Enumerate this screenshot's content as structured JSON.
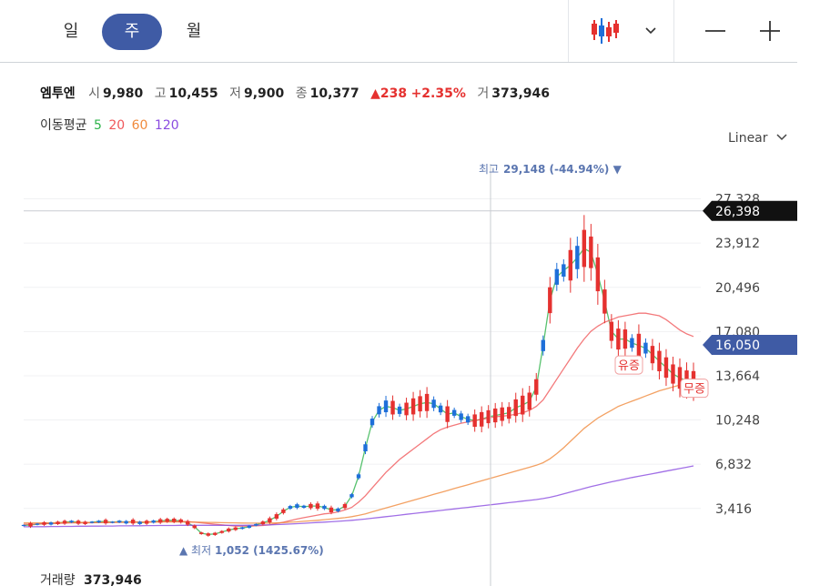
{
  "tabs": [
    {
      "label": "일",
      "active": false
    },
    {
      "label": "주",
      "active": true
    },
    {
      "label": "월",
      "active": false
    }
  ],
  "toolbar": {
    "chart_type_icon": "candlestick-icon",
    "dropdown_icon": "chevron-down-icon",
    "zoom_out_icon": "minus-icon",
    "zoom_in_icon": "plus-icon"
  },
  "stock": {
    "name": "엠투엔",
    "open_label": "시",
    "open": "9,980",
    "high_label": "고",
    "high": "10,455",
    "low_label": "저",
    "low": "9,900",
    "close_label": "종",
    "close": "10,377",
    "change": "▲238",
    "change_pct": "+2.35%",
    "volume_label": "거",
    "volume": "373,946"
  },
  "ma": {
    "label": "이동평균",
    "periods": [
      {
        "label": "5",
        "color": "#2db34a"
      },
      {
        "label": "20",
        "color": "#f0575a"
      },
      {
        "label": "60",
        "color": "#f08a3c"
      },
      {
        "label": "120",
        "color": "#8a4be0"
      }
    ]
  },
  "scale_label": "Linear",
  "volume_footer": {
    "label": "거래량",
    "value": "373,946"
  },
  "colors": {
    "up": "#e5312f",
    "down": "#1e6fd9",
    "accent": "#3f5ba5",
    "crosshair_tag": "#111111",
    "price_tag": "#3f5ba5"
  },
  "chart_data": {
    "type": "candlestick",
    "ylim": [
      0,
      30000
    ],
    "yticks": [
      {
        "value": 3416,
        "label": "3,416"
      },
      {
        "value": 6832,
        "label": "6,832"
      },
      {
        "value": 10248,
        "label": "10,248"
      },
      {
        "value": 13664,
        "label": "13,664"
      },
      {
        "value": 17080,
        "label": "17,080"
      },
      {
        "value": 20496,
        "label": "20,496"
      },
      {
        "value": 23912,
        "label": "23,912"
      },
      {
        "value": 27328,
        "label": "27,328"
      }
    ],
    "crosshair_price": {
      "value": 26398,
      "label": "26,398"
    },
    "current_price": {
      "value": 16050,
      "label": "16,050"
    },
    "high_marker": {
      "label": "최고",
      "value_text": "29,148 (-44.94%)",
      "price": 29148
    },
    "low_marker": {
      "label": "최저",
      "value_text": "1,052 (1425.67%)",
      "price": 1052
    },
    "event_badges": [
      {
        "label": "유증",
        "price": 14500
      },
      {
        "label": "무증",
        "price": 12700
      }
    ],
    "series": [
      {
        "name": "5",
        "color": "#2db34a",
        "values": [
          2100,
          2150,
          2200,
          2250,
          2250,
          2300,
          2350,
          2400,
          2350,
          2300,
          2350,
          2400,
          2400,
          2350,
          2400,
          2350,
          2400,
          2300,
          2350,
          2400,
          2450,
          2500,
          2500,
          2450,
          2300,
          2000,
          1500,
          1400,
          1450,
          1600,
          1750,
          1850,
          1900,
          2000,
          2150,
          2300,
          2500,
          2800,
          3200,
          3500,
          3600,
          3550,
          3600,
          3600,
          3500,
          3300,
          3300,
          3600,
          4400,
          5900,
          8100,
          10100,
          11000,
          11300,
          11200,
          11000,
          11100,
          11300,
          11500,
          11600,
          11500,
          11100,
          10700,
          10800,
          10500,
          10300,
          10200,
          10300,
          10500,
          10600,
          10700,
          10800,
          11200,
          11400,
          11700,
          12800,
          16000,
          19500,
          21300,
          21800,
          22200,
          22800,
          23500,
          23200,
          21500,
          19400,
          17100,
          16500,
          16500,
          16200,
          16000,
          15800,
          15300,
          14800,
          14300,
          13800,
          13500,
          13300,
          13200
        ]
      },
      {
        "name": "20",
        "color": "#f0575a",
        "values": [
          2200,
          2200,
          2220,
          2240,
          2250,
          2260,
          2280,
          2300,
          2300,
          2300,
          2310,
          2320,
          2330,
          2330,
          2340,
          2350,
          2360,
          2360,
          2370,
          2380,
          2390,
          2400,
          2400,
          2410,
          2400,
          2350,
          2300,
          2250,
          2200,
          2150,
          2100,
          2050,
          2050,
          2050,
          2080,
          2100,
          2150,
          2250,
          2350,
          2480,
          2600,
          2700,
          2800,
          2900,
          3000,
          3050,
          3150,
          3300,
          3500,
          3900,
          4400,
          5000,
          5600,
          6200,
          6700,
          7200,
          7600,
          8000,
          8400,
          8800,
          9200,
          9500,
          9700,
          9850,
          10000,
          10100,
          10200,
          10300,
          10400,
          10500,
          10550,
          10600,
          10700,
          10800,
          11000,
          11300,
          11800,
          12600,
          13400,
          14200,
          15000,
          15800,
          16500,
          17100,
          17500,
          17800,
          18000,
          18200,
          18300,
          18400,
          18500,
          18500,
          18400,
          18300,
          18000,
          17600,
          17200,
          16900,
          16700
        ]
      },
      {
        "name": "60",
        "color": "#f08a3c",
        "values": [
          2300,
          2300,
          2300,
          2310,
          2310,
          2320,
          2320,
          2330,
          2330,
          2330,
          2340,
          2340,
          2340,
          2350,
          2350,
          2350,
          2360,
          2360,
          2360,
          2360,
          2370,
          2370,
          2370,
          2370,
          2370,
          2360,
          2350,
          2340,
          2330,
          2320,
          2310,
          2300,
          2290,
          2280,
          2280,
          2280,
          2290,
          2300,
          2320,
          2350,
          2380,
          2420,
          2460,
          2500,
          2550,
          2600,
          2650,
          2700,
          2780,
          2880,
          3000,
          3150,
          3300,
          3450,
          3600,
          3750,
          3900,
          4050,
          4200,
          4350,
          4500,
          4650,
          4800,
          4950,
          5100,
          5250,
          5400,
          5550,
          5700,
          5850,
          6000,
          6150,
          6300,
          6450,
          6600,
          6750,
          6950,
          7250,
          7650,
          8100,
          8600,
          9100,
          9600,
          10000,
          10400,
          10700,
          11000,
          11300,
          11500,
          11700,
          11900,
          12100,
          12300,
          12500,
          12650,
          12800,
          12950,
          13100,
          13200
        ]
      },
      {
        "name": "120",
        "color": "#8a4be0",
        "values": [
          2000,
          2000,
          2010,
          2010,
          2020,
          2020,
          2030,
          2030,
          2040,
          2040,
          2050,
          2050,
          2060,
          2060,
          2070,
          2070,
          2080,
          2080,
          2090,
          2090,
          2100,
          2100,
          2100,
          2110,
          2110,
          2110,
          2110,
          2110,
          2110,
          2110,
          2110,
          2110,
          2110,
          2120,
          2130,
          2140,
          2150,
          2170,
          2190,
          2210,
          2240,
          2270,
          2300,
          2330,
          2360,
          2390,
          2420,
          2460,
          2500,
          2550,
          2600,
          2660,
          2720,
          2780,
          2840,
          2900,
          2960,
          3020,
          3080,
          3140,
          3200,
          3260,
          3320,
          3380,
          3440,
          3500,
          3560,
          3620,
          3680,
          3740,
          3800,
          3860,
          3920,
          3980,
          4040,
          4100,
          4180,
          4280,
          4400,
          4540,
          4680,
          4820,
          4960,
          5100,
          5230,
          5350,
          5470,
          5580,
          5690,
          5800,
          5900,
          6000,
          6100,
          6200,
          6300,
          6400,
          6500,
          6600,
          6700
        ]
      }
    ]
  }
}
